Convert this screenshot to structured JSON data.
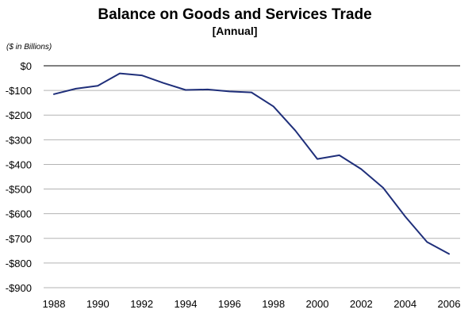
{
  "chart_data": {
    "type": "line",
    "title": "Balance on Goods and Services Trade",
    "subtitle": "[Annual]",
    "units_note": "($ in Billions)",
    "xlabel": "",
    "ylabel": "",
    "x": [
      1988,
      1989,
      1990,
      1991,
      1992,
      1993,
      1994,
      1995,
      1996,
      1997,
      1998,
      1999,
      2000,
      2001,
      2002,
      2003,
      2004,
      2005,
      2006
    ],
    "x_ticks": [
      1988,
      1990,
      1992,
      1994,
      1996,
      1998,
      2000,
      2002,
      2004,
      2006
    ],
    "x_tick_labels": [
      "1988",
      "1990",
      "1992",
      "1994",
      "1996",
      "1998",
      "2000",
      "2002",
      "2004",
      "2006"
    ],
    "y_ticks": [
      0,
      -100,
      -200,
      -300,
      -400,
      -500,
      -600,
      -700,
      -800,
      -900
    ],
    "y_tick_labels": [
      "$0",
      "-$100",
      "-$200",
      "-$300",
      "-$400",
      "-$500",
      "-$600",
      "-$700",
      "-$800",
      "-$900"
    ],
    "xlim": [
      1988,
      2006
    ],
    "ylim": [
      -900,
      0
    ],
    "grid": true,
    "legend": "none",
    "series": [
      {
        "values": [
          -115,
          -93,
          -81,
          -31,
          -39,
          -70,
          -98,
          -96,
          -104,
          -108,
          -165,
          -263,
          -378,
          -363,
          -419,
          -495,
          -611,
          -715,
          -763
        ],
        "color": "#1f2f7a"
      }
    ],
    "colors": {
      "line": "#1f2f7a",
      "grid": "#b3b3b3",
      "zero_line": "#000000",
      "background": "#ffffff"
    }
  }
}
